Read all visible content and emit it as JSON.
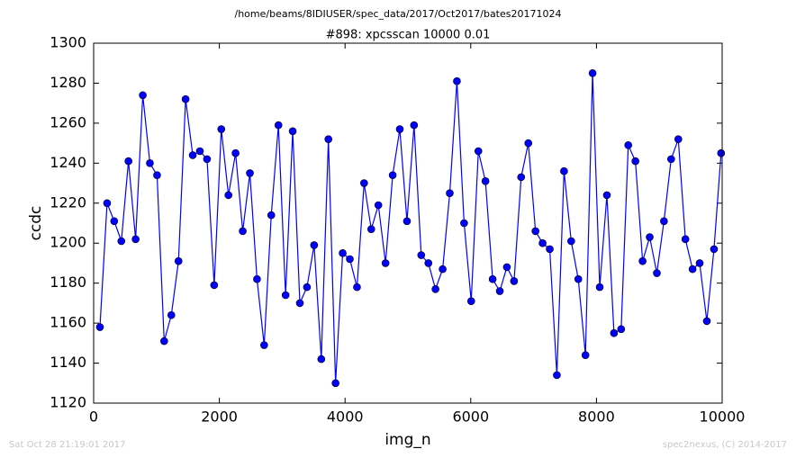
{
  "chart_data": {
    "type": "line",
    "title": "/home/beams/8IDIUSER/spec_data/2017/Oct2017/bates20171024",
    "subtitle": "#898: xpcsscan 10000 0.01",
    "x_label": "img_n",
    "y_label": "ccdc",
    "footer_left": "Sat Oct 28 21:19:01 2017",
    "footer_right": "spec2nexus, (C) 2014-2017",
    "x": [
      100,
      214,
      327,
      441,
      554,
      668,
      782,
      895,
      1009,
      1122,
      1236,
      1350,
      1463,
      1577,
      1690,
      1804,
      1918,
      2031,
      2145,
      2258,
      2372,
      2486,
      2599,
      2713,
      2826,
      2940,
      3054,
      3167,
      3281,
      3394,
      3508,
      3622,
      3735,
      3849,
      3962,
      4076,
      4190,
      4303,
      4417,
      4530,
      4644,
      4758,
      4871,
      4985,
      5098,
      5212,
      5326,
      5439,
      5553,
      5666,
      5780,
      5894,
      6007,
      6121,
      6234,
      6348,
      6462,
      6575,
      6689,
      6802,
      6916,
      7030,
      7143,
      7257,
      7370,
      7484,
      7598,
      7711,
      7825,
      7938,
      8052,
      8166,
      8279,
      8393,
      8506,
      8620,
      8734,
      8847,
      8961,
      9074,
      9188,
      9302,
      9415,
      9529,
      9642,
      9756,
      9870,
      9983
    ],
    "series": [
      {
        "name": "ccdc",
        "color": "#0000ff",
        "values": [
          1158,
          1220,
          1211,
          1201,
          1241,
          1202,
          1274,
          1240,
          1234,
          1151,
          1164,
          1191,
          1272,
          1244,
          1246,
          1242,
          1179,
          1257,
          1224,
          1245,
          1206,
          1235,
          1182,
          1149,
          1214,
          1259,
          1174,
          1256,
          1170,
          1178,
          1199,
          1142,
          1252,
          1130,
          1195,
          1192,
          1178,
          1230,
          1207,
          1219,
          1190,
          1234,
          1257,
          1211,
          1259,
          1194,
          1190,
          1177,
          1187,
          1225,
          1281,
          1210,
          1171,
          1246,
          1231,
          1182,
          1176,
          1188,
          1181,
          1233,
          1250,
          1206,
          1200,
          1197,
          1134,
          1236,
          1201,
          1182,
          1144,
          1285,
          1178,
          1224,
          1155,
          1157,
          1249,
          1241,
          1191,
          1203,
          1185,
          1211,
          1242,
          1252,
          1202,
          1187,
          1190,
          1161,
          1197,
          1245
        ]
      }
    ],
    "xlim": [
      0,
      10000
    ],
    "xticks": [
      0,
      2000,
      4000,
      6000,
      8000,
      10000
    ],
    "ylim": [
      1120,
      1300
    ],
    "yticks": [
      1120,
      1140,
      1160,
      1180,
      1200,
      1220,
      1240,
      1260,
      1280,
      1300
    ],
    "grid": false
  }
}
